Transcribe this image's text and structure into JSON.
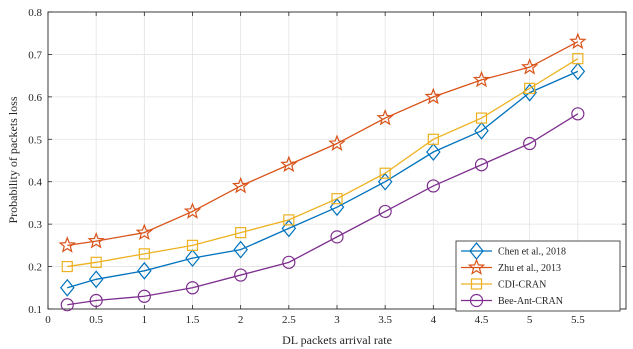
{
  "chart_data": {
    "type": "line",
    "xlabel": "DL packets arrival rate",
    "ylabel": "Probability of packets loss",
    "xlim": [
      0,
      6
    ],
    "ylim": [
      0.1,
      0.8
    ],
    "xticks": [
      0,
      0.5,
      1,
      1.5,
      2,
      2.5,
      3,
      3.5,
      4,
      4.5,
      5,
      5.5
    ],
    "xtick_labels": [
      "0",
      "0.5",
      "1",
      "1.5",
      "2",
      "2.5",
      "3",
      "3.5",
      "4",
      "4.5",
      "5",
      "5.5"
    ],
    "yticks": [
      0.1,
      0.2,
      0.3,
      0.4,
      0.5,
      0.6,
      0.7,
      0.8
    ],
    "ytick_labels": [
      "0.1",
      "0.2",
      "0.3",
      "0.4",
      "0.5",
      "0.6",
      "0.7",
      "0.8"
    ],
    "grid": true,
    "legend_position": "bottom-right",
    "x": [
      0.2,
      0.5,
      1,
      1.5,
      2,
      2.5,
      3,
      3.5,
      4,
      4.5,
      5,
      5.5
    ],
    "series": [
      {
        "name": "Chen et al., 2018",
        "color": "#0072BD",
        "marker": "diamond",
        "values": [
          0.15,
          0.17,
          0.19,
          0.22,
          0.24,
          0.29,
          0.34,
          0.4,
          0.47,
          0.52,
          0.61,
          0.66
        ]
      },
      {
        "name": "Zhu et al., 2013",
        "color": "#D95319",
        "marker": "star",
        "values": [
          0.25,
          0.26,
          0.28,
          0.33,
          0.39,
          0.44,
          0.49,
          0.55,
          0.6,
          0.64,
          0.67,
          0.73
        ]
      },
      {
        "name": "CDI-CRAN",
        "color": "#EDB120",
        "marker": "square",
        "values": [
          0.2,
          0.21,
          0.23,
          0.25,
          0.28,
          0.31,
          0.36,
          0.42,
          0.5,
          0.55,
          0.62,
          0.69
        ]
      },
      {
        "name": "Bee-Ant-CRAN",
        "color": "#7E2F8E",
        "marker": "circle",
        "values": [
          0.11,
          0.12,
          0.13,
          0.15,
          0.18,
          0.21,
          0.27,
          0.33,
          0.39,
          0.44,
          0.49,
          0.56
        ]
      }
    ]
  }
}
